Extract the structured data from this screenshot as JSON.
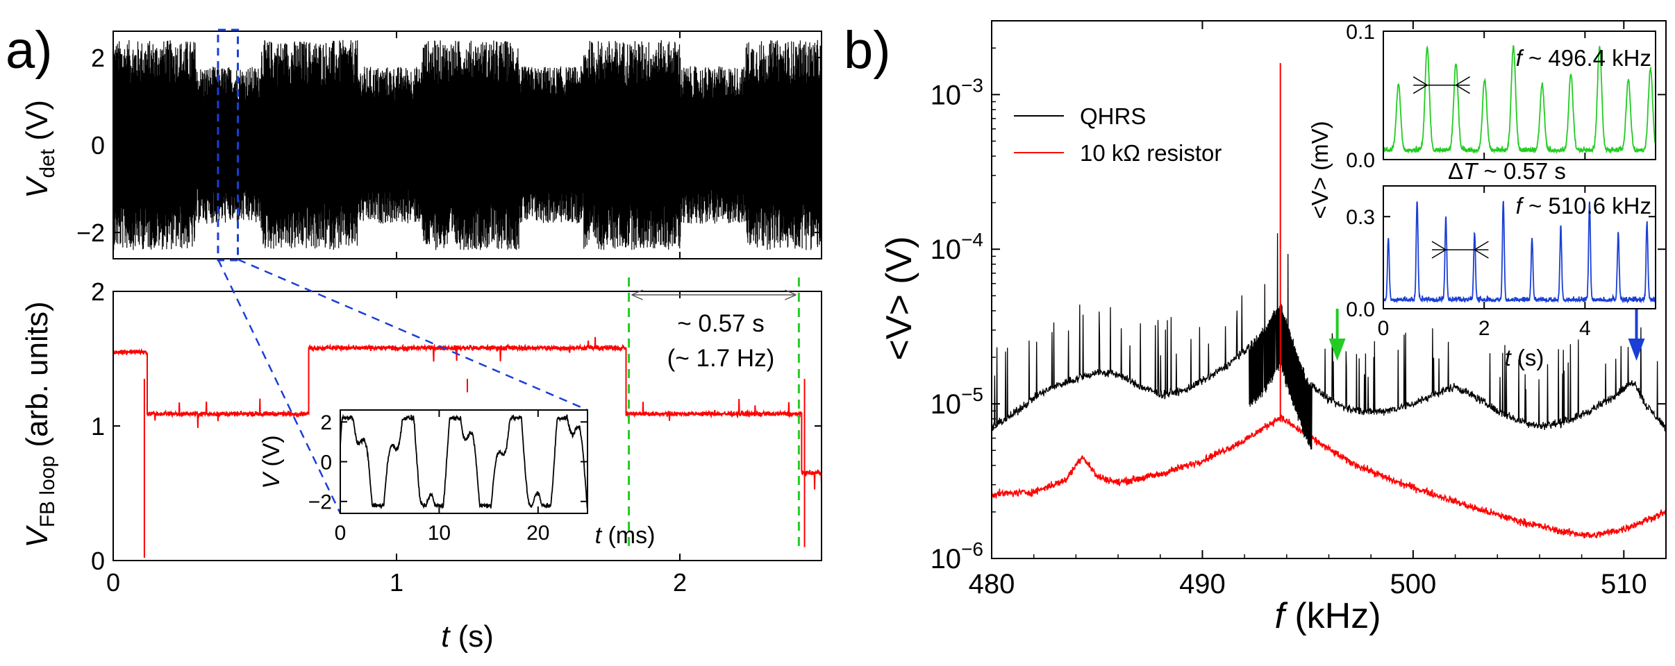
{
  "figure": {
    "panel_a_label": "a)",
    "panel_b_label": "b)"
  },
  "chart_data": [
    {
      "id": "a-top",
      "type": "line",
      "ylabel_main": "V",
      "ylabel_sub": "det",
      "ylabel_unit": " (V)",
      "xlim": [
        0,
        2.5
      ],
      "ylim": [
        -2.6,
        2.6
      ],
      "yticks": [
        -2,
        0,
        2
      ],
      "ytick_labels": [
        "−2",
        "0",
        "2"
      ],
      "series": [
        {
          "color": "#000000",
          "amplitude": 2.4,
          "description": "fast switching between ±2.4 V, bursts about every 0.57 s"
        }
      ],
      "zoom_window": {
        "x": [
          0.37,
          0.44
        ]
      }
    },
    {
      "id": "a-bottom",
      "type": "line",
      "ylabel_main": "V",
      "ylabel_sub": "FB loop",
      "ylabel_unit": " (arb. units)",
      "xlabel_main": "t",
      "xlabel_unit": " (s)",
      "xlim": [
        0,
        2.5
      ],
      "ylim": [
        0,
        2
      ],
      "xticks": [
        0,
        1,
        2
      ],
      "xtick_labels": [
        "0",
        "1",
        "2"
      ],
      "yticks": [
        0,
        1,
        2
      ],
      "ytick_labels": [
        "0",
        "1",
        "2"
      ],
      "series": [
        {
          "color": "#ff0000",
          "levels": [
            {
              "x": [
                0,
                0.12
              ],
              "y": 1.55
            },
            {
              "x": [
                0.12,
                0.69
              ],
              "y": 1.09
            },
            {
              "x": [
                0.69,
                1.81
              ],
              "y": 1.58
            },
            {
              "x": [
                1.81,
                2.43
              ],
              "y": 1.09
            },
            {
              "x": [
                2.43,
                2.5
              ],
              "y": 0.65
            }
          ]
        }
      ],
      "markers": [
        1.82,
        2.42
      ],
      "annotation_period": "~ 0.57 s",
      "annotation_freq": "(~ 1.7 Hz)"
    },
    {
      "id": "a-inset",
      "type": "line",
      "ylabel_main": "V",
      "ylabel_unit": " (V)",
      "xlabel_main": "t",
      "xlabel_unit": " (ms)",
      "xlim": [
        0,
        25
      ],
      "ylim": [
        -2.6,
        2.6
      ],
      "xticks": [
        0,
        10,
        20
      ],
      "xtick_labels": [
        "0",
        "10",
        "20"
      ],
      "yticks": [
        -2,
        0,
        2
      ],
      "ytick_labels": [
        "−2",
        "0",
        "2"
      ],
      "series": [
        {
          "color": "#000000",
          "amplitude": 2.2
        }
      ]
    },
    {
      "id": "b-main",
      "type": "line",
      "ylabel": "<V> (V)",
      "xlabel_main": "f",
      "xlabel_unit": " (kHz)",
      "xlim": [
        480,
        512
      ],
      "ylim": [
        1e-06,
        0.003
      ],
      "yscale": "log",
      "xticks": [
        480,
        490,
        500,
        510
      ],
      "xtick_labels": [
        "480",
        "490",
        "500",
        "510"
      ],
      "yticks": [
        1e-06,
        1e-05,
        0.0001,
        0.001
      ],
      "ytick_base": "10",
      "ytick_exps": [
        "−6",
        "−5",
        "−4",
        "−3"
      ],
      "legend": {
        "position": "top-left",
        "entries": [
          {
            "name": "QHRS",
            "color": "#000000"
          },
          {
            "name": "10 kΩ resistor",
            "color": "#ff0000"
          }
        ]
      },
      "series": [
        {
          "name": "QHRS",
          "color": "#000000",
          "anchors": [
            [
              480.0,
              7e-06
            ],
            [
              481,
              8.5e-06
            ],
            [
              482,
              1.1e-05
            ],
            [
              483,
              1.3e-05
            ],
            [
              484,
              1.45e-05
            ],
            [
              485,
              1.6e-05
            ],
            [
              486,
              1.55e-05
            ],
            [
              487,
              1.3e-05
            ],
            [
              488,
              1.15e-05
            ],
            [
              489,
              1.2e-05
            ],
            [
              490,
              1.4e-05
            ],
            [
              491,
              1.7e-05
            ],
            [
              492,
              2.2e-05
            ],
            [
              493,
              3.1e-05
            ],
            [
              493.7,
              4.5e-05
            ],
            [
              494.3,
              2.5e-05
            ],
            [
              495,
              1.4e-05
            ],
            [
              496,
              1.05e-05
            ],
            [
              497,
              9.2e-06
            ],
            [
              498,
              8.8e-06
            ],
            [
              499,
              9.2e-06
            ],
            [
              500,
              1e-05
            ],
            [
              501,
              1.15e-05
            ],
            [
              502,
              1.3e-05
            ],
            [
              503,
              1.1e-05
            ],
            [
              504,
              9e-06
            ],
            [
              505,
              7.8e-06
            ],
            [
              506,
              7.2e-06
            ],
            [
              507,
              7.5e-06
            ],
            [
              508,
              8.5e-06
            ],
            [
              509,
              1e-05
            ],
            [
              510,
              1.25e-05
            ],
            [
              510.5,
              1.4e-05
            ],
            [
              511,
              1e-05
            ],
            [
              512,
              7e-06
            ]
          ],
          "peak": {
            "x": 493.7,
            "y": 0.0016
          }
        },
        {
          "name": "10 kΩ resistor",
          "color": "#ff0000",
          "anchors": [
            [
              480.0,
              2.6e-06
            ],
            [
              482,
              2.7e-06
            ],
            [
              483.5,
              3.2e-06
            ],
            [
              484.3,
              4.6e-06
            ],
            [
              485,
              3.4e-06
            ],
            [
              486,
              3.1e-06
            ],
            [
              488,
              3.5e-06
            ],
            [
              490,
              4.3e-06
            ],
            [
              492,
              5.8e-06
            ],
            [
              493.7,
              8.2e-06
            ],
            [
              495,
              6.2e-06
            ],
            [
              497,
              4.2e-06
            ],
            [
              499,
              3.2e-06
            ],
            [
              501,
              2.6e-06
            ],
            [
              503,
              2.1e-06
            ],
            [
              505,
              1.75e-06
            ],
            [
              507,
              1.5e-06
            ],
            [
              508.5,
              1.4e-06
            ],
            [
              510,
              1.55e-06
            ],
            [
              512,
              2e-06
            ]
          ]
        }
      ],
      "arrows": [
        {
          "x": 496.4,
          "color": "#22cc22"
        },
        {
          "x": 510.6,
          "color": "#1a3fd6"
        }
      ]
    },
    {
      "id": "b-inset-top",
      "type": "line",
      "annotation_f": "496.4 kHz",
      "annotation_dt": "~ 0.57 s",
      "xlim": [
        0,
        5.4
      ],
      "ylim": [
        0,
        0.1
      ],
      "yticks": [
        0,
        0.1
      ],
      "ytick_labels": [
        "0.0",
        "0.1"
      ],
      "series": [
        {
          "color": "#22cc22",
          "peaks": [
            0.3,
            0.87,
            1.44,
            2.01,
            2.58,
            3.15,
            3.72,
            4.29,
            4.86,
            5.3
          ]
        }
      ]
    },
    {
      "id": "b-inset-bottom",
      "type": "line",
      "shared_ylabel": "<V> (mV)",
      "annotation_f": "510.6 kHz",
      "xlabel_main": "t",
      "xlabel_unit": " (s)",
      "xlim": [
        0,
        5.4
      ],
      "ylim": [
        0,
        0.4
      ],
      "xticks": [
        0,
        2,
        4
      ],
      "xtick_labels": [
        "0",
        "2",
        "4"
      ],
      "yticks": [
        0,
        0.3
      ],
      "ytick_labels": [
        "0.0",
        "0.3"
      ],
      "series": [
        {
          "color": "#1a3fd6",
          "peaks": [
            0.1,
            0.67,
            1.24,
            1.81,
            2.38,
            2.95,
            3.52,
            4.09,
            4.66,
            5.23
          ]
        }
      ]
    }
  ]
}
